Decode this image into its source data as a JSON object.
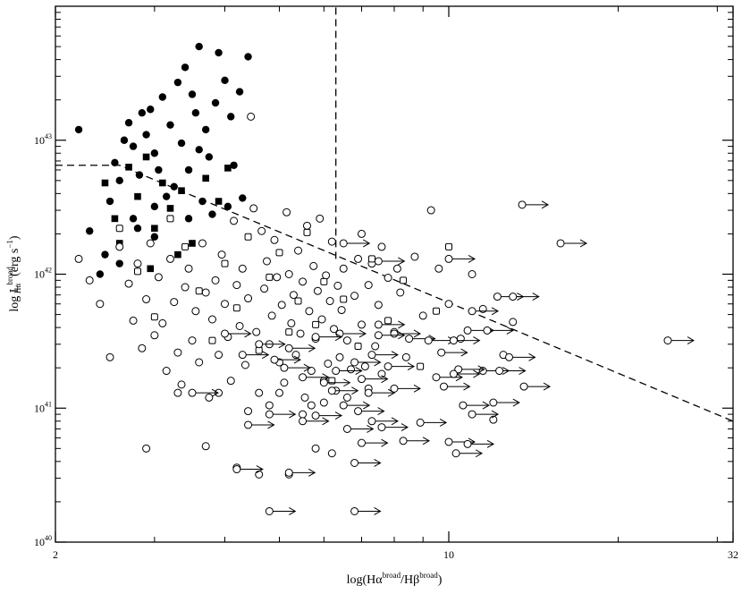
{
  "chart_data": {
    "type": "scatter",
    "title": "",
    "xlabel": "log(Hα^broad/Hβ^broad)",
    "ylabel": "log L_Hα^broad (erg s^-1)",
    "xlabel_parts": {
      "lead": "log(Hα",
      "sup1": "broad",
      "mid": "/Hβ",
      "sup2": "broad",
      "tail": ")"
    },
    "ylabel_parts": {
      "lead": "log L",
      "sup": "broad",
      "sub": "Hα",
      "unit": "(erg s",
      "unit_sup": "−1",
      "unit_tail": ")"
    },
    "x_scale": "log",
    "y_scale": "log",
    "xlim": [
      2,
      32
    ],
    "ylim": [
      1e+40,
      1e+44
    ],
    "x_ticks": [
      {
        "value": 2,
        "label": "2"
      },
      {
        "value": 10,
        "label": "10"
      },
      {
        "value": 32,
        "label": "32"
      }
    ],
    "y_ticks": [
      {
        "value": 1e+40,
        "label": "10",
        "exp": "40"
      },
      {
        "value": 1e+41,
        "label": "10",
        "exp": "41"
      },
      {
        "value": 1e+42,
        "label": "10",
        "exp": "42"
      },
      {
        "value": 1e+43,
        "label": "10",
        "exp": "43"
      }
    ],
    "grid": false,
    "legend": "none",
    "reference_lines": [
      {
        "style": "dashed",
        "points": [
          [
            2,
            6.5e+42
          ],
          [
            2.6,
            6.5e+42
          ],
          [
            32,
            8e+40
          ]
        ]
      },
      {
        "style": "dashed",
        "points": [
          [
            6.3,
            1.3e+42
          ],
          [
            6.3,
            1e+44
          ]
        ]
      }
    ],
    "series": [
      {
        "marker": "filled-circle",
        "points": [
          [
            2.2,
            1.2e+43
          ],
          [
            2.3,
            2.1e+42
          ],
          [
            2.45,
            1.4e+42
          ],
          [
            2.5,
            3.5e+42
          ],
          [
            2.55,
            6.8e+42
          ],
          [
            2.6,
            5e+42
          ],
          [
            2.6,
            1.2e+42
          ],
          [
            2.7,
            1.35e+43
          ],
          [
            2.75,
            9e+42
          ],
          [
            2.8,
            2.2e+42
          ],
          [
            2.82,
            5.5e+42
          ],
          [
            2.9,
            1.1e+43
          ],
          [
            2.95,
            1.7e+43
          ],
          [
            3.0,
            8e+42
          ],
          [
            3.0,
            3.2e+42
          ],
          [
            3.05,
            6e+42
          ],
          [
            3.1,
            2.1e+43
          ],
          [
            3.2,
            1.3e+43
          ],
          [
            3.25,
            4.5e+42
          ],
          [
            3.3,
            2.7e+43
          ],
          [
            3.35,
            9.5e+42
          ],
          [
            3.4,
            3.5e+43
          ],
          [
            3.45,
            6e+42
          ],
          [
            3.5,
            2.2e+43
          ],
          [
            3.55,
            1.6e+43
          ],
          [
            3.6,
            5e+43
          ],
          [
            3.65,
            3.5e+42
          ],
          [
            3.7,
            1.2e+43
          ],
          [
            3.75,
            7.5e+42
          ],
          [
            3.8,
            2.8e+42
          ],
          [
            3.85,
            1.9e+43
          ],
          [
            3.9,
            4.5e+43
          ],
          [
            4.0,
            2.8e+43
          ],
          [
            4.05,
            3.2e+42
          ],
          [
            4.1,
            1.5e+43
          ],
          [
            4.15,
            6.5e+42
          ],
          [
            4.25,
            2.3e+43
          ],
          [
            4.4,
            4.2e+43
          ],
          [
            4.3,
            3.7e+42
          ],
          [
            2.65,
            1e+43
          ],
          [
            3.15,
            3.8e+42
          ],
          [
            2.85,
            1.6e+43
          ],
          [
            3.45,
            2.6e+42
          ],
          [
            2.4,
            1e+42
          ],
          [
            2.75,
            2.6e+42
          ],
          [
            3.0,
            1.9e+42
          ],
          [
            3.6,
            8.5e+42
          ]
        ]
      },
      {
        "marker": "filled-square",
        "points": [
          [
            2.45,
            4.8e+42
          ],
          [
            2.55,
            2.6e+42
          ],
          [
            2.6,
            1.7e+42
          ],
          [
            2.7,
            6.3e+42
          ],
          [
            2.8,
            3.8e+42
          ],
          [
            2.9,
            7.5e+42
          ],
          [
            3.0,
            2.2e+42
          ],
          [
            3.1,
            4.8e+42
          ],
          [
            3.2,
            3.1e+42
          ],
          [
            3.35,
            4.2e+42
          ],
          [
            3.5,
            1.7e+42
          ],
          [
            3.7,
            5.2e+42
          ],
          [
            3.9,
            3.5e+42
          ],
          [
            4.05,
            6.2e+42
          ],
          [
            3.3,
            1.4e+42
          ],
          [
            2.95,
            1.1e+42
          ]
        ]
      },
      {
        "marker": "open-circle",
        "points": [
          [
            2.2,
            1.3e+42
          ],
          [
            2.3,
            9e+41
          ],
          [
            2.4,
            6e+41
          ],
          [
            2.5,
            2.4e+41
          ],
          [
            2.6,
            1.6e+42
          ],
          [
            2.7,
            8.5e+41
          ],
          [
            2.75,
            4.5e+41
          ],
          [
            2.8,
            1.2e+42
          ],
          [
            2.85,
            2.8e+41
          ],
          [
            2.9,
            6.5e+41
          ],
          [
            2.95,
            1.7e+42
          ],
          [
            3.0,
            3.5e+41
          ],
          [
            3.05,
            9.5e+41
          ],
          [
            3.1,
            4.3e+41
          ],
          [
            3.15,
            1.9e+41
          ],
          [
            3.2,
            1.3e+42
          ],
          [
            3.25,
            6.2e+41
          ],
          [
            3.3,
            2.6e+41
          ],
          [
            3.35,
            1.5e+41
          ],
          [
            3.4,
            8e+41
          ],
          [
            3.45,
            1.1e+42
          ],
          [
            3.5,
            3.2e+41
          ],
          [
            3.55,
            5.3e+41
          ],
          [
            3.6,
            2.2e+41
          ],
          [
            3.65,
            1.7e+42
          ],
          [
            3.7,
            7.3e+41
          ],
          [
            3.75,
            1.2e+41
          ],
          [
            3.8,
            4.6e+41
          ],
          [
            3.85,
            9e+41
          ],
          [
            3.9,
            2.5e+41
          ],
          [
            3.95,
            1.4e+42
          ],
          [
            4.0,
            6e+41
          ],
          [
            4.05,
            3.4e+41
          ],
          [
            4.1,
            1.6e+41
          ],
          [
            4.15,
            2.5e+42
          ],
          [
            4.2,
            8.3e+41
          ],
          [
            4.25,
            4.1e+41
          ],
          [
            4.3,
            1.1e+42
          ],
          [
            4.35,
            2.1e+41
          ],
          [
            4.4,
            6.6e+41
          ],
          [
            4.45,
            1.5e+43
          ],
          [
            4.5,
            3.1e+42
          ],
          [
            4.55,
            3.7e+41
          ],
          [
            4.6,
            1.3e+41
          ],
          [
            4.65,
            2.1e+42
          ],
          [
            4.7,
            7.8e+41
          ],
          [
            4.75,
            1.25e+42
          ],
          [
            4.8,
            3e+41
          ],
          [
            4.85,
            4.9e+41
          ],
          [
            4.9,
            1.8e+42
          ],
          [
            4.95,
            9.5e+41
          ],
          [
            5.0,
            2.2e+41
          ],
          [
            5.05,
            5.9e+41
          ],
          [
            5.1,
            1.55e+41
          ],
          [
            5.15,
            2.9e+42
          ],
          [
            5.2,
            1e+42
          ],
          [
            5.25,
            4.3e+41
          ],
          [
            5.3,
            7e+41
          ],
          [
            5.35,
            2.5e+41
          ],
          [
            5.4,
            1.5e+42
          ],
          [
            5.45,
            3.6e+41
          ],
          [
            5.5,
            8.8e+41
          ],
          [
            5.55,
            1.2e+41
          ],
          [
            5.6,
            2.3e+42
          ],
          [
            5.65,
            5.3e+41
          ],
          [
            5.7,
            1.9e+41
          ],
          [
            5.75,
            1.15e+42
          ],
          [
            5.8,
            3.3e+41
          ],
          [
            5.85,
            7.5e+41
          ],
          [
            5.9,
            2.6e+42
          ],
          [
            5.95,
            4.6e+41
          ],
          [
            6.0,
            1.6e+41
          ],
          [
            6.05,
            9.8e+41
          ],
          [
            6.1,
            2.15e+41
          ],
          [
            6.15,
            6.3e+41
          ],
          [
            6.2,
            1.75e+42
          ],
          [
            6.25,
            3.9e+41
          ],
          [
            6.3,
            1.35e+41
          ],
          [
            6.35,
            8.2e+41
          ],
          [
            6.4,
            2.4e+41
          ],
          [
            6.45,
            5.4e+41
          ],
          [
            6.5,
            1.1e+42
          ],
          [
            6.6,
            3.2e+41
          ],
          [
            6.7,
            1.95e+41
          ],
          [
            6.8,
            6.9e+41
          ],
          [
            6.9,
            1.3e+42
          ],
          [
            7.0,
            4.2e+41
          ],
          [
            7.1,
            2.05e+41
          ],
          [
            7.2,
            8.3e+41
          ],
          [
            7.3,
            1.2e+42
          ],
          [
            7.4,
            2.9e+41
          ],
          [
            7.5,
            5.9e+41
          ],
          [
            7.6,
            1.8e+41
          ],
          [
            7.8,
            9.4e+41
          ],
          [
            8.0,
            3.7e+41
          ],
          [
            8.2,
            7.3e+41
          ],
          [
            8.4,
            2.4e+41
          ],
          [
            8.7,
            1.35e+42
          ],
          [
            9.0,
            4.9e+41
          ],
          [
            9.3,
            3e+42
          ],
          [
            9.6,
            1.1e+42
          ],
          [
            10.0,
            6e+41
          ],
          [
            10.5,
            3.3e+41
          ],
          [
            11.0,
            1e+42
          ],
          [
            11.5,
            5.5e+41
          ],
          [
            12.0,
            8.2e+40
          ],
          [
            12.5,
            2.5e+41
          ],
          [
            13.0,
            4.4e+41
          ],
          [
            2.9,
            5e+40
          ],
          [
            3.7,
            5.2e+40
          ],
          [
            4.2,
            3.6e+40
          ],
          [
            4.6,
            3.2e+40
          ],
          [
            5.2,
            3.2e+40
          ],
          [
            5.8,
            5e+40
          ],
          [
            6.2,
            4.6e+40
          ],
          [
            7.0,
            2e+42
          ],
          [
            7.6,
            1.6e+42
          ],
          [
            8.1,
            1.1e+42
          ],
          [
            4.8,
            1.05e+41
          ],
          [
            5.5,
            9e+40
          ],
          [
            6.0,
            1.1e+41
          ],
          [
            6.6,
            1.2e+41
          ],
          [
            7.2,
            1.4e+41
          ],
          [
            3.3,
            1.3e+41
          ],
          [
            3.9,
            1.3e+41
          ],
          [
            4.4,
            9.5e+40
          ],
          [
            5.0,
            1.3e+41
          ],
          [
            5.7,
            1.05e+41
          ]
        ]
      },
      {
        "marker": "open-square",
        "points": [
          [
            2.6,
            2.2e+42
          ],
          [
            2.8,
            1.05e+42
          ],
          [
            3.0,
            4.8e+41
          ],
          [
            3.2,
            2.6e+42
          ],
          [
            3.4,
            1.6e+42
          ],
          [
            3.6,
            7.5e+41
          ],
          [
            3.8,
            3.2e+41
          ],
          [
            4.0,
            1.2e+42
          ],
          [
            4.2,
            5.6e+41
          ],
          [
            4.4,
            1.9e+42
          ],
          [
            4.6,
            2.7e+41
          ],
          [
            4.8,
            9.5e+41
          ],
          [
            5.0,
            1.45e+42
          ],
          [
            5.2,
            3.7e+41
          ],
          [
            5.4,
            6.3e+41
          ],
          [
            5.6,
            2.05e+42
          ],
          [
            5.8,
            4.2e+41
          ],
          [
            6.0,
            8.8e+41
          ],
          [
            6.2,
            1.6e+41
          ],
          [
            6.5,
            6.5e+41
          ],
          [
            6.9,
            2.9e+41
          ],
          [
            7.3,
            1.3e+42
          ],
          [
            7.8,
            4.5e+41
          ],
          [
            8.3,
            9e+41
          ],
          [
            8.9,
            2.05e+41
          ],
          [
            9.5,
            5.3e+41
          ],
          [
            10.0,
            1.6e+42
          ]
        ]
      },
      {
        "marker": "open-symbol-with-right-arrow (lower limit)",
        "points": [
          [
            13.5,
            3.3e+42
          ],
          [
            15.8,
            1.7e+42
          ],
          [
            10.0,
            1.3e+42
          ],
          [
            11.0,
            5.3e+41
          ],
          [
            12.2,
            6.8e+41
          ],
          [
            13.0,
            6.8e+41
          ],
          [
            8.5,
            3.3e+41
          ],
          [
            9.2,
            3.2e+41
          ],
          [
            10.2,
            3.2e+41
          ],
          [
            10.8,
            3.8e+41
          ],
          [
            11.5,
            1.9e+41
          ],
          [
            12.3,
            1.9e+41
          ],
          [
            13.6,
            1.45e+41
          ],
          [
            9.5,
            1.7e+41
          ],
          [
            10.4,
            1.95e+41
          ],
          [
            9.8,
            1.45e+41
          ],
          [
            10.6,
            1.05e+41
          ],
          [
            12.0,
            1.1e+41
          ],
          [
            8.0,
            1.4e+41
          ],
          [
            7.2,
            1.3e+41
          ],
          [
            6.2,
            1.35e+41
          ],
          [
            6.5,
            1.05e+41
          ],
          [
            6.9,
            9.5e+40
          ],
          [
            7.3,
            8e+40
          ],
          [
            5.8,
            8.8e+40
          ],
          [
            5.5,
            8e+40
          ],
          [
            4.8,
            9e+40
          ],
          [
            4.4,
            7.5e+40
          ],
          [
            8.9,
            7.8e+40
          ],
          [
            6.6,
            7e+40
          ],
          [
            7.6,
            7.2e+40
          ],
          [
            10.0,
            5.6e+40
          ],
          [
            10.8,
            5.4e+40
          ],
          [
            8.3,
            5.7e+40
          ],
          [
            7.0,
            5.5e+40
          ],
          [
            10.3,
            4.6e+40
          ],
          [
            11.0,
            9e+40
          ],
          [
            6.8,
            3.9e+40
          ],
          [
            5.2,
            3.3e+40
          ],
          [
            4.2,
            3.5e+40
          ],
          [
            4.8,
            1.7e+40
          ],
          [
            6.8,
            1.7e+40
          ],
          [
            7.5,
            4.2e+41
          ],
          [
            8.0,
            3.6e+41
          ],
          [
            7.5,
            3.5e+41
          ],
          [
            6.8,
            2.2e+41
          ],
          [
            7.3,
            2.5e+41
          ],
          [
            6.4,
            3.6e+41
          ],
          [
            5.8,
            3.4e+41
          ],
          [
            5.2,
            2.8e+41
          ],
          [
            4.6,
            3e+41
          ],
          [
            4.3,
            2.5e+41
          ],
          [
            4.0,
            3.6e+41
          ],
          [
            3.5,
            1.3e+41
          ],
          [
            4.9,
            2.3e+41
          ],
          [
            5.5,
            1.7e+41
          ],
          [
            6.3,
            1.9e+41
          ],
          [
            7.0,
            1.65e+41
          ],
          [
            7.8,
            2.05e+41
          ],
          [
            12.8,
            2.4e+41
          ],
          [
            11.7,
            3.8e+41
          ],
          [
            6.5,
            1.7e+42
          ],
          [
            7.5,
            1.25e+42
          ],
          [
            24.5,
            3.2e+41
          ],
          [
            10.2,
            1.8e+41
          ],
          [
            6.0,
            1.55e+41
          ],
          [
            5.1,
            2e+41
          ],
          [
            9.7,
            2.6e+41
          ]
        ]
      }
    ]
  }
}
